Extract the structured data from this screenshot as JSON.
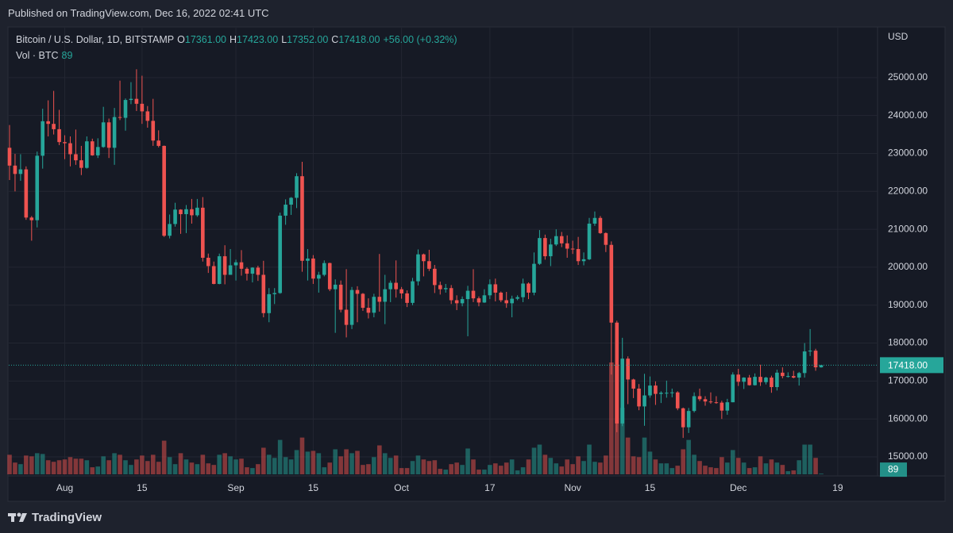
{
  "header": {
    "published": "Published on TradingView.com, Dec 16, 2022 02:41 UTC"
  },
  "footer": {
    "brand": "TradingView"
  },
  "chart_data": {
    "type": "candlestick",
    "legend": {
      "symbol": "Bitcoin / U.S. Dollar, 1D, BITSTAMP",
      "ohlc": [
        {
          "key": "O",
          "value": "17361.00"
        },
        {
          "key": "H",
          "value": "17423.00"
        },
        {
          "key": "L",
          "value": "17352.00"
        },
        {
          "key": "C",
          "value": "17418.00"
        }
      ],
      "change": "+56.00 (+0.32%)",
      "volume_name": "Vol · BTC",
      "volume_value": "89"
    },
    "currency": "USD",
    "last_price_label": "17418.00",
    "last_volume_label": "89",
    "up_color": "#26a69a",
    "down_color": "#ef5350",
    "grid": true,
    "x": [
      "2022-07-22",
      "2022-07-23",
      "2022-07-24",
      "2022-07-25",
      "2022-07-26",
      "2022-07-27",
      "2022-07-28",
      "2022-07-29",
      "2022-07-30",
      "2022-07-31",
      "2022-08-01",
      "2022-08-02",
      "2022-08-03",
      "2022-08-04",
      "2022-08-05",
      "2022-08-06",
      "2022-08-07",
      "2022-08-08",
      "2022-08-09",
      "2022-08-10",
      "2022-08-11",
      "2022-08-12",
      "2022-08-13",
      "2022-08-14",
      "2022-08-15",
      "2022-08-16",
      "2022-08-17",
      "2022-08-18",
      "2022-08-19",
      "2022-08-20",
      "2022-08-21",
      "2022-08-22",
      "2022-08-23",
      "2022-08-24",
      "2022-08-25",
      "2022-08-26",
      "2022-08-27",
      "2022-08-28",
      "2022-08-29",
      "2022-08-30",
      "2022-08-31",
      "2022-09-01",
      "2022-09-02",
      "2022-09-03",
      "2022-09-04",
      "2022-09-05",
      "2022-09-06",
      "2022-09-07",
      "2022-09-08",
      "2022-09-09",
      "2022-09-10",
      "2022-09-11",
      "2022-09-12",
      "2022-09-13",
      "2022-09-14",
      "2022-09-15",
      "2022-09-16",
      "2022-09-17",
      "2022-09-18",
      "2022-09-19",
      "2022-09-20",
      "2022-09-21",
      "2022-09-22",
      "2022-09-23",
      "2022-09-24",
      "2022-09-25",
      "2022-09-26",
      "2022-09-27",
      "2022-09-28",
      "2022-09-29",
      "2022-09-30",
      "2022-10-01",
      "2022-10-02",
      "2022-10-03",
      "2022-10-04",
      "2022-10-05",
      "2022-10-06",
      "2022-10-07",
      "2022-10-08",
      "2022-10-09",
      "2022-10-10",
      "2022-10-11",
      "2022-10-12",
      "2022-10-13",
      "2022-10-14",
      "2022-10-15",
      "2022-10-16",
      "2022-10-17",
      "2022-10-18",
      "2022-10-19",
      "2022-10-20",
      "2022-10-21",
      "2022-10-22",
      "2022-10-23",
      "2022-10-24",
      "2022-10-25",
      "2022-10-26",
      "2022-10-27",
      "2022-10-28",
      "2022-10-29",
      "2022-10-30",
      "2022-10-31",
      "2022-11-01",
      "2022-11-02",
      "2022-11-03",
      "2022-11-04",
      "2022-11-05",
      "2022-11-06",
      "2022-11-07",
      "2022-11-08",
      "2022-11-09",
      "2022-11-10",
      "2022-11-11",
      "2022-11-12",
      "2022-11-13",
      "2022-11-14",
      "2022-11-15",
      "2022-11-16",
      "2022-11-17",
      "2022-11-18",
      "2022-11-19",
      "2022-11-20",
      "2022-11-21",
      "2022-11-22",
      "2022-11-23",
      "2022-11-24",
      "2022-11-25",
      "2022-11-26",
      "2022-11-27",
      "2022-11-28",
      "2022-11-29",
      "2022-11-30",
      "2022-12-01",
      "2022-12-02",
      "2022-12-03",
      "2022-12-04",
      "2022-12-05",
      "2022-12-06",
      "2022-12-07",
      "2022-12-08",
      "2022-12-09",
      "2022-12-10",
      "2022-12-11",
      "2022-12-12",
      "2022-12-13",
      "2022-12-14",
      "2022-12-15",
      "2022-12-16"
    ],
    "open": [
      23150,
      22680,
      22460,
      22580,
      21310,
      21240,
      22940,
      23850,
      23780,
      23640,
      23300,
      23270,
      22980,
      22820,
      22620,
      23320,
      22950,
      23170,
      23820,
      23150,
      23960,
      23940,
      24410,
      24440,
      24310,
      24110,
      23860,
      23340,
      23200,
      20830,
      21140,
      21520,
      21400,
      21530,
      21370,
      21570,
      20250,
      20030,
      19560,
      20290,
      19800,
      20050,
      20130,
      19960,
      19830,
      19990,
      19800,
      18790,
      19290,
      19320,
      21360,
      21650,
      21830,
      22400,
      20170,
      20230,
      19700,
      19800,
      20110,
      19420,
      19540,
      18880,
      18480,
      19400,
      19300,
      18930,
      18800,
      19220,
      19090,
      19420,
      19590,
      19420,
      19310,
      19060,
      19630,
      20340,
      20160,
      19960,
      19530,
      19420,
      19450,
      19130,
      19050,
      19160,
      19380,
      19180,
      19070,
      19260,
      19550,
      19330,
      19130,
      19050,
      19170,
      19210,
      19570,
      19330,
      20090,
      20770,
      20290,
      20600,
      20820,
      20630,
      20490,
      20480,
      20160,
      20210,
      21150,
      21300,
      20900,
      20590,
      18540,
      15880,
      17590,
      17040,
      16800,
      16330,
      16620,
      16880,
      16660,
      16690,
      16690,
      16700,
      16280,
      15780,
      16210,
      16600,
      16520,
      16460,
      16440,
      16430,
      16220,
      16440,
      17170,
      16980,
      17090,
      16890,
      17110,
      16970,
      17090,
      16840,
      17220,
      17130,
      17130,
      17090,
      17210,
      17780,
      17800,
      17361
    ],
    "high": [
      23750,
      22990,
      22980,
      22660,
      21350,
      23050,
      24180,
      24400,
      24650,
      24150,
      23480,
      23450,
      23630,
      23200,
      23450,
      23390,
      23400,
      24230,
      23920,
      24200,
      24920,
      24450,
      24880,
      25220,
      25050,
      24250,
      24440,
      23610,
      23210,
      21390,
      21700,
      21530,
      21640,
      21800,
      21800,
      21850,
      20360,
      20150,
      20360,
      20580,
      20480,
      20200,
      20450,
      20000,
      20000,
      20040,
      20170,
      19450,
      19450,
      21440,
      21790,
      21850,
      22480,
      22780,
      20480,
      20320,
      19880,
      20180,
      20120,
      19680,
      19650,
      19950,
      19480,
      19500,
      19320,
      19180,
      19300,
      20350,
      19800,
      19650,
      20180,
      19480,
      19390,
      19720,
      20470,
      20360,
      20460,
      20060,
      19620,
      19560,
      19530,
      19260,
      19230,
      19510,
      19950,
      19230,
      19420,
      19680,
      19700,
      19360,
      19350,
      19250,
      19260,
      19700,
      19600,
      20390,
      20980,
      20860,
      20750,
      21000,
      20930,
      20840,
      20700,
      20800,
      20390,
      21300,
      21470,
      21350,
      20920,
      20680,
      18590,
      18140,
      17650,
      17060,
      16920,
      17190,
      17120,
      16990,
      16730,
      17010,
      16800,
      16730,
      16300,
      16290,
      16700,
      16800,
      16600,
      16700,
      16600,
      16480,
      16530,
      17230,
      17320,
      17100,
      17160,
      17200,
      17430,
      17110,
      17140,
      17300,
      17360,
      17230,
      17270,
      17240,
      18000,
      18370,
      17850,
      17423
    ],
    "low": [
      22300,
      22000,
      22280,
      21250,
      20700,
      21050,
      22600,
      23450,
      23500,
      23220,
      22850,
      22660,
      22700,
      22430,
      22600,
      22940,
      22880,
      23150,
      22880,
      22700,
      23880,
      23600,
      24300,
      24120,
      23780,
      23680,
      23200,
      23160,
      20800,
      20760,
      21070,
      20880,
      20900,
      21150,
      21330,
      20150,
      19850,
      19550,
      19550,
      19550,
      19800,
      19650,
      19780,
      19650,
      19600,
      19640,
      18680,
      18550,
      19030,
      19300,
      21120,
      21380,
      21560,
      19880,
      19650,
      19560,
      19330,
      19760,
      19370,
      18270,
      18810,
      18150,
      18370,
      18550,
      18850,
      18650,
      18680,
      18830,
      18500,
      19080,
      19200,
      19170,
      18950,
      19000,
      19520,
      19760,
      19900,
      19320,
      19280,
      19330,
      19030,
      18870,
      18970,
      18180,
      19080,
      18970,
      19060,
      19160,
      19100,
      19080,
      18930,
      18680,
      19130,
      19080,
      19160,
      19260,
      20060,
      20200,
      20030,
      20560,
      20530,
      20250,
      20350,
      20060,
      20050,
      20190,
      21090,
      20880,
      20400,
      17170,
      15650,
      15810,
      16390,
      16550,
      16230,
      15820,
      16560,
      16370,
      16420,
      16560,
      16570,
      16230,
      15500,
      15630,
      16170,
      16470,
      16350,
      16400,
      16400,
      16000,
      16110,
      16440,
      16870,
      16790,
      16880,
      16880,
      16870,
      16910,
      16690,
      16750,
      17070,
      17090,
      17070,
      16880,
      17090,
      17660,
      17270,
      17352
    ],
    "close": [
      22680,
      22460,
      22580,
      21310,
      21240,
      22940,
      23850,
      23780,
      23640,
      23300,
      23270,
      22980,
      22820,
      22620,
      23320,
      22950,
      23170,
      23820,
      23150,
      23960,
      23940,
      24410,
      24440,
      24310,
      24110,
      23860,
      23340,
      23200,
      20830,
      21140,
      21520,
      21400,
      21530,
      21370,
      21570,
      20250,
      20030,
      19560,
      20290,
      19800,
      20050,
      20130,
      19960,
      19830,
      19990,
      19800,
      18790,
      19290,
      19320,
      21360,
      21650,
      21830,
      22400,
      20170,
      20230,
      19700,
      19800,
      20110,
      19420,
      19540,
      18880,
      18480,
      19400,
      19300,
      18930,
      18800,
      19220,
      19090,
      19420,
      19590,
      19420,
      19310,
      19060,
      19630,
      20340,
      20160,
      19960,
      19530,
      19420,
      19450,
      19130,
      19050,
      19160,
      19380,
      19180,
      19070,
      19260,
      19550,
      19330,
      19130,
      19050,
      19170,
      19210,
      19570,
      19330,
      20090,
      20770,
      20290,
      20600,
      20820,
      20630,
      20490,
      20480,
      20160,
      20210,
      21150,
      21300,
      20900,
      20590,
      18540,
      15880,
      17590,
      17040,
      16800,
      16330,
      16620,
      16880,
      16660,
      16690,
      16690,
      16700,
      16280,
      15780,
      16210,
      16600,
      16520,
      16460,
      16440,
      16430,
      16220,
      16440,
      17170,
      16980,
      17090,
      16890,
      17110,
      16970,
      17090,
      16840,
      17220,
      17130,
      17130,
      17090,
      17210,
      17780,
      17800,
      17361,
      17418
    ],
    "volume": [
      2500,
      1500,
      1300,
      2400,
      2300,
      2700,
      2600,
      1800,
      1600,
      1800,
      1900,
      2200,
      2000,
      2000,
      1800,
      900,
      1000,
      2300,
      1800,
      2700,
      2500,
      1800,
      1200,
      1900,
      2400,
      1700,
      2500,
      1600,
      4300,
      2200,
      1300,
      2700,
      1900,
      1500,
      1300,
      2500,
      1400,
      1200,
      2500,
      2700,
      2300,
      1900,
      2000,
      900,
      800,
      1300,
      3400,
      2500,
      2100,
      4400,
      2200,
      1900,
      3100,
      4700,
      2900,
      3000,
      2700,
      900,
      1500,
      3200,
      2300,
      3200,
      2700,
      3000,
      1200,
      1300,
      2200,
      3700,
      2700,
      2100,
      2400,
      800,
      800,
      1700,
      2400,
      1900,
      1700,
      1800,
      700,
      600,
      1300,
      1500,
      1200,
      3300,
      1900,
      600,
      600,
      1200,
      1400,
      1100,
      1500,
      1900,
      500,
      900,
      1900,
      3400,
      3800,
      2500,
      2100,
      1400,
      1000,
      1900,
      1300,
      2300,
      1700,
      3800,
      1600,
      1500,
      2400,
      14300,
      14000,
      8500,
      4700,
      2300,
      2200,
      4700,
      2900,
      1900,
      1400,
      1400,
      800,
      1100,
      3200,
      4400,
      2500,
      1700,
      1100,
      900,
      800,
      2200,
      1500,
      3100,
      2100,
      1500,
      800,
      900,
      2300,
      1400,
      1900,
      1500,
      1200,
      400,
      500,
      1800,
      3800,
      3800,
      2100,
      89
    ],
    "ylim": [
      14540,
      26210
    ],
    "yticks": [
      {
        "value": 15000,
        "label": "15000.00"
      },
      {
        "value": 16000,
        "label": "16000.00"
      },
      {
        "value": 17000,
        "label": "17000.00"
      },
      {
        "value": 18000,
        "label": "18000.00"
      },
      {
        "value": 19000,
        "label": "19000.00"
      },
      {
        "value": 20000,
        "label": "20000.00"
      },
      {
        "value": 21000,
        "label": "21000.00"
      },
      {
        "value": 22000,
        "label": "22000.00"
      },
      {
        "value": 23000,
        "label": "23000.00"
      },
      {
        "value": 24000,
        "label": "24000.00"
      },
      {
        "value": 25000,
        "label": "25000.00"
      }
    ],
    "xticks": [
      {
        "value": "2022-08-01",
        "label": "Aug"
      },
      {
        "value": "2022-08-15",
        "label": "15"
      },
      {
        "value": "2022-09-01",
        "label": "Sep"
      },
      {
        "value": "2022-09-15",
        "label": "15"
      },
      {
        "value": "2022-10-01",
        "label": "Oct"
      },
      {
        "value": "2022-10-17",
        "label": "17"
      },
      {
        "value": "2022-11-01",
        "label": "Nov"
      },
      {
        "value": "2022-11-15",
        "label": "15"
      },
      {
        "value": "2022-12-01",
        "label": "Dec"
      },
      {
        "value": "2022-12-19",
        "label": "19"
      }
    ]
  }
}
